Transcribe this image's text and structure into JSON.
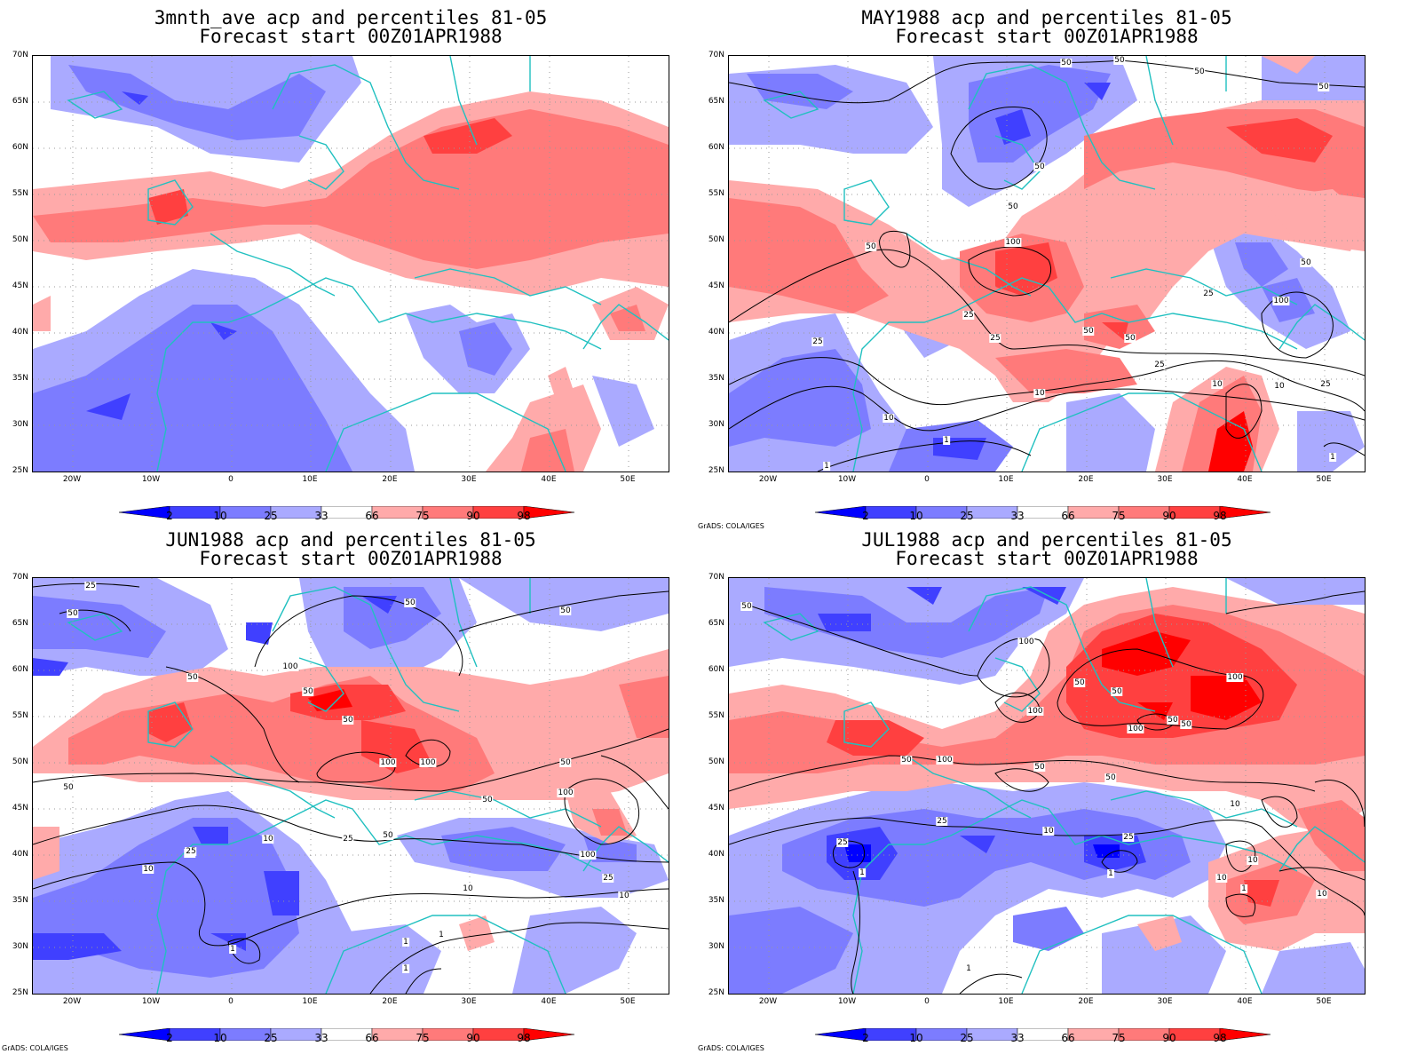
{
  "x_tick_labels": [
    "20W",
    "10W",
    "0",
    "10E",
    "20E",
    "30E",
    "40E",
    "50E"
  ],
  "y_tick_labels": [
    "70N",
    "65N",
    "60N",
    "55N",
    "50N",
    "45N",
    "40N",
    "35N",
    "30N",
    "25N"
  ],
  "colorbar_labels": [
    "2",
    "10",
    "25",
    "33",
    "66",
    "75",
    "90",
    "98"
  ],
  "colorbar_colors": [
    "#0000ff",
    "#4040ff",
    "#7c7cff",
    "#aaaaff",
    "#ffffff",
    "#ffaaaa",
    "#ff7a7a",
    "#ff4040",
    "#ff0000"
  ],
  "coastline_color": "#20c0c0",
  "credit": "GrADS: COLA/IGES",
  "panels": [
    {
      "title1": "3mnth_ave acp and percentiles 81-05",
      "title2": "Forecast start 00Z01APR1988",
      "show_credit": false,
      "contour_labels": []
    },
    {
      "title1": "MAY1988 acp and percentiles 81-05",
      "title2": "Forecast start 00Z01APR1988",
      "show_credit": true,
      "contour_labels": [
        "50",
        "50",
        "50",
        "50",
        "50",
        "50",
        "50",
        "100",
        "50",
        "50",
        "100",
        "50",
        "25",
        "25",
        "25",
        "25",
        "25",
        "10",
        "10",
        "10",
        "10",
        "25",
        "1",
        "1",
        "1"
      ]
    },
    {
      "title1": "JUN1988 acp and percentiles 81-05",
      "title2": "Forecast start 00Z01APR1988",
      "show_credit": true,
      "contour_labels": [
        "25",
        "50",
        "50",
        "50",
        "100",
        "50",
        "50",
        "50",
        "100",
        "100",
        "100",
        "50",
        "50",
        "50",
        "25",
        "25",
        "50",
        "10",
        "10",
        "25",
        "100",
        "25",
        "10",
        "10",
        "1",
        "1",
        "1",
        "1"
      ]
    },
    {
      "title1": "JUL1988 acp and percentiles 81-05",
      "title2": "Forecast start 00Z01APR1988",
      "show_credit": true,
      "contour_labels": [
        "50",
        "100",
        "50",
        "100",
        "50",
        "100",
        "50",
        "100",
        "50",
        "50",
        "100",
        "50",
        "50",
        "10",
        "10",
        "25",
        "10",
        "25",
        "10",
        "25",
        "1",
        "1",
        "1",
        "10",
        "1"
      ]
    }
  ]
}
